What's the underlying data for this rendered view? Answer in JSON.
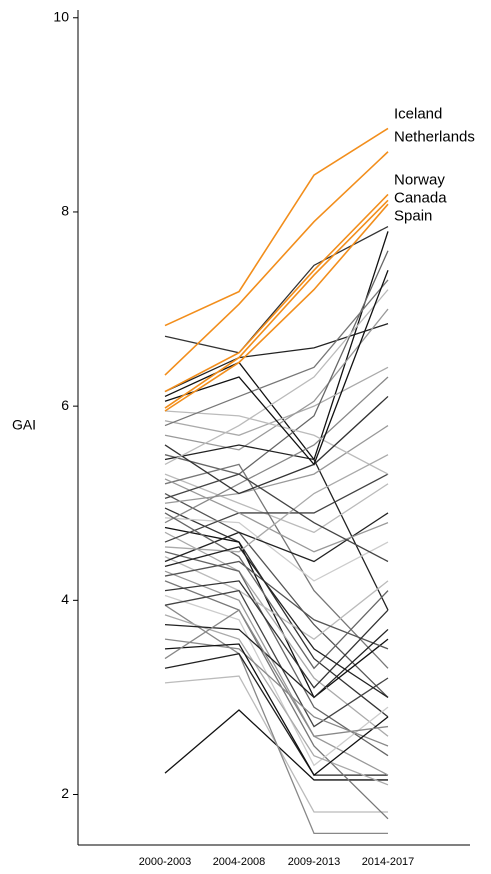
{
  "chart_data": {
    "type": "line",
    "ylabel": "GAI",
    "categories": [
      "2000-2003",
      "2004-2008",
      "2009-2013",
      "2014-2017"
    ],
    "ylim": [
      1.48,
      10.08
    ],
    "yticks": [
      2,
      4,
      6,
      8,
      10
    ],
    "series": [
      {
        "color": "#111111",
        "values": [
          2.22,
          2.87,
          2.15,
          2.15
        ]
      },
      {
        "color": "#bbbbbb",
        "values": [
          3.15,
          3.22,
          1.82,
          1.82
        ]
      },
      {
        "color": "#888888",
        "values": [
          3.95,
          3.45,
          1.6,
          1.6
        ]
      },
      {
        "color": "#222222",
        "values": [
          3.3,
          3.45,
          2.2,
          2.2
        ]
      },
      {
        "color": "#333333",
        "values": [
          6.72,
          6.55,
          7.45,
          7.85
        ]
      },
      {
        "color": "#222222",
        "values": [
          6.15,
          6.5,
          6.6,
          6.85
        ]
      },
      {
        "color": "#111111",
        "values": [
          6.1,
          6.45,
          5.45,
          7.8
        ]
      },
      {
        "color": "#aaaaaa",
        "values": [
          5.85,
          5.7,
          6.0,
          6.4
        ]
      },
      {
        "color": "#999999",
        "values": [
          5.7,
          5.55,
          6.05,
          7.0
        ]
      },
      {
        "color": "#666666",
        "values": [
          5.5,
          5.3,
          5.9,
          7.6
        ]
      },
      {
        "color": "#222222",
        "values": [
          5.45,
          5.6,
          5.45,
          3.9
        ]
      },
      {
        "color": "#bbbbbb",
        "values": [
          5.3,
          5.0,
          4.7,
          5.2
        ]
      },
      {
        "color": "#777777",
        "values": [
          5.2,
          5.4,
          4.1,
          3.3
        ]
      },
      {
        "color": "#555555",
        "values": [
          5.1,
          4.7,
          3.75,
          3.0
        ]
      },
      {
        "color": "#999999",
        "values": [
          5.0,
          5.1,
          5.3,
          5.8
        ]
      },
      {
        "color": "#333333",
        "values": [
          4.95,
          4.6,
          3.4,
          2.8
        ]
      },
      {
        "color": "#cccccc",
        "values": [
          4.85,
          4.8,
          4.2,
          4.6
        ]
      },
      {
        "color": "#888888",
        "values": [
          4.8,
          5.2,
          5.6,
          6.3
        ]
      },
      {
        "color": "#111111",
        "values": [
          4.75,
          4.6,
          3.0,
          3.6
        ]
      },
      {
        "color": "#aaaaaa",
        "values": [
          4.7,
          4.3,
          3.2,
          2.6
        ]
      },
      {
        "color": "#444444",
        "values": [
          4.6,
          4.9,
          4.9,
          5.3
        ]
      },
      {
        "color": "#666666",
        "values": [
          4.5,
          4.3,
          2.9,
          2.4
        ]
      },
      {
        "color": "#bbbbbb",
        "values": [
          4.45,
          4.1,
          3.6,
          4.2
        ]
      },
      {
        "color": "#222222",
        "values": [
          4.4,
          4.7,
          4.4,
          4.9
        ]
      },
      {
        "color": "#999999",
        "values": [
          4.3,
          4.0,
          2.6,
          2.2
        ]
      },
      {
        "color": "#555555",
        "values": [
          4.25,
          4.4,
          3.8,
          3.5
        ]
      },
      {
        "color": "#777777",
        "values": [
          4.2,
          3.9,
          2.5,
          1.75
        ]
      },
      {
        "color": "#333333",
        "values": [
          4.1,
          4.2,
          3.1,
          3.9
        ]
      },
      {
        "color": "#cccccc",
        "values": [
          4.05,
          3.8,
          2.3,
          2.9
        ]
      },
      {
        "color": "#444444",
        "values": [
          3.95,
          4.1,
          2.7,
          3.2
        ]
      },
      {
        "color": "#aaaaaa",
        "values": [
          3.85,
          3.6,
          2.4,
          2.1
        ]
      },
      {
        "color": "#222222",
        "values": [
          3.75,
          3.7,
          3.0,
          3.7
        ]
      },
      {
        "color": "#888888",
        "values": [
          3.6,
          3.5,
          2.8,
          2.5
        ]
      },
      {
        "color": "#111111",
        "values": [
          3.5,
          3.55,
          2.2,
          2.8
        ]
      },
      {
        "color": "#bbbbbb",
        "values": [
          5.95,
          5.9,
          5.7,
          5.3
        ]
      },
      {
        "color": "#333333",
        "values": [
          5.6,
          5.1,
          5.4,
          6.1
        ]
      },
      {
        "color": "#999999",
        "values": [
          5.25,
          4.9,
          4.5,
          4.8
        ]
      },
      {
        "color": "#666666",
        "values": [
          4.9,
          4.45,
          3.3,
          4.1
        ]
      },
      {
        "color": "#aaaaaa",
        "values": [
          4.55,
          4.5,
          5.1,
          5.5
        ]
      },
      {
        "color": "#222222",
        "values": [
          4.35,
          4.55,
          3.5,
          3.0
        ]
      },
      {
        "color": "#777777",
        "values": [
          5.8,
          6.1,
          6.4,
          7.3
        ]
      },
      {
        "color": "#bbbbbb",
        "values": [
          5.4,
          5.8,
          6.3,
          7.2
        ]
      },
      {
        "color": "#444444",
        "values": [
          5.05,
          5.3,
          4.8,
          4.4
        ]
      },
      {
        "color": "#888888",
        "values": [
          3.4,
          3.9,
          2.6,
          2.7
        ]
      },
      {
        "color": "#111111",
        "values": [
          6.05,
          6.3,
          5.4,
          7.4
        ]
      },
      {
        "name": "Iceland",
        "color": "#f28e1c",
        "values": [
          6.83,
          7.18,
          8.38,
          8.86
        ]
      },
      {
        "name": "Netherlands",
        "color": "#f28e1c",
        "values": [
          6.32,
          7.05,
          7.9,
          8.62
        ]
      },
      {
        "name": "Norway",
        "color": "#f28e1c",
        "values": [
          6.15,
          6.55,
          7.4,
          8.18
        ]
      },
      {
        "name": "Canada",
        "color": "#f28e1c",
        "values": [
          5.98,
          6.5,
          7.35,
          8.12
        ]
      },
      {
        "name": "Spain",
        "color": "#f28e1c",
        "values": [
          5.95,
          6.45,
          7.2,
          8.08
        ]
      }
    ]
  }
}
